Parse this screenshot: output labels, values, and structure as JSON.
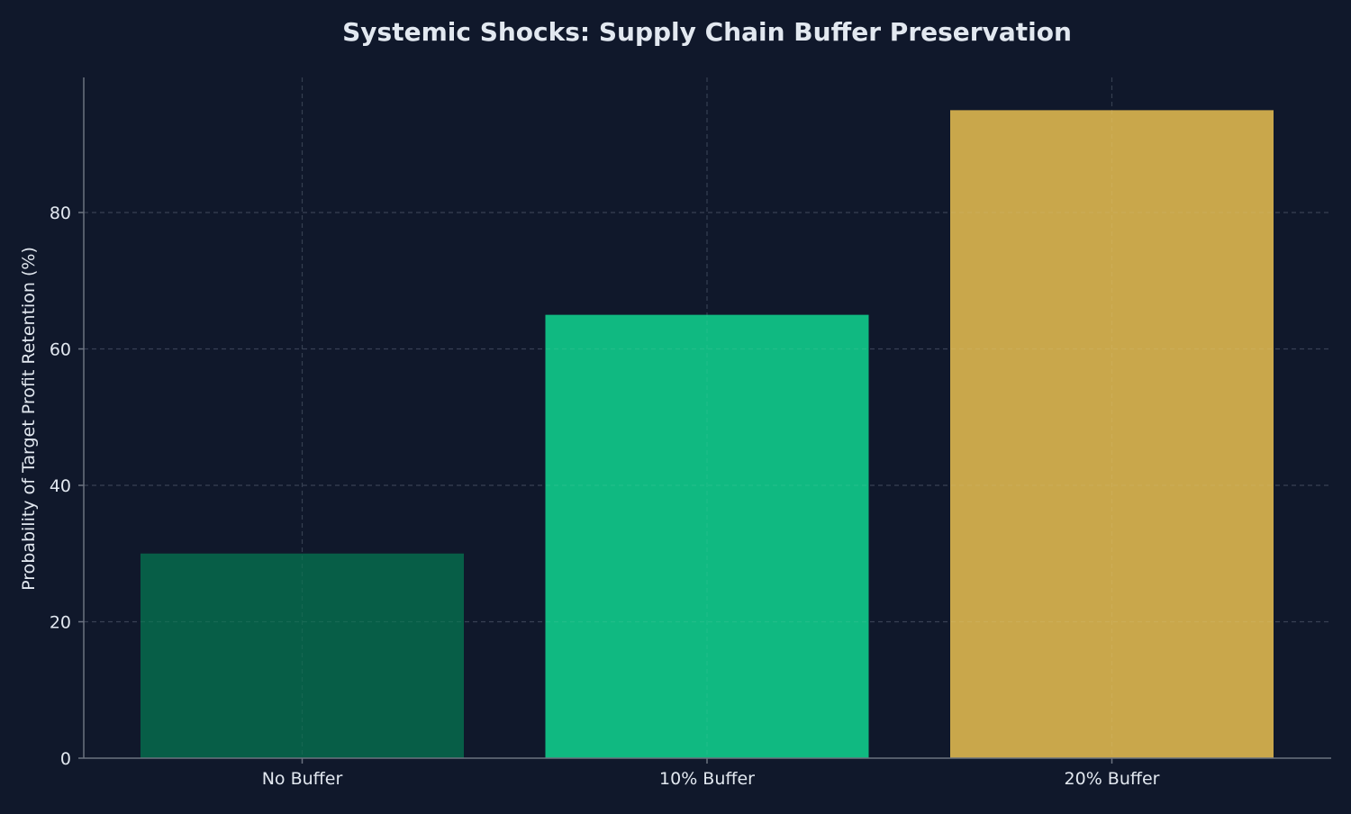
{
  "chart_data": {
    "type": "bar",
    "title": "Systemic Shocks: Supply Chain Buffer Preservation",
    "xlabel": "",
    "ylabel": "Probability of Target Profit Retention (%)",
    "categories": [
      "No Buffer",
      "10% Buffer",
      "20% Buffer"
    ],
    "values": [
      30,
      65,
      95
    ],
    "colors": [
      "#075e47",
      "#10b981",
      "#c9a74b"
    ],
    "ylim": [
      0,
      100
    ],
    "yticks": [
      0,
      20,
      40,
      60,
      80
    ],
    "grid": true,
    "legend": "none"
  },
  "theme": {
    "background": "#10182b",
    "text": "#e2e8f0",
    "axis": "#6b7280",
    "grid": "#2a3347"
  }
}
